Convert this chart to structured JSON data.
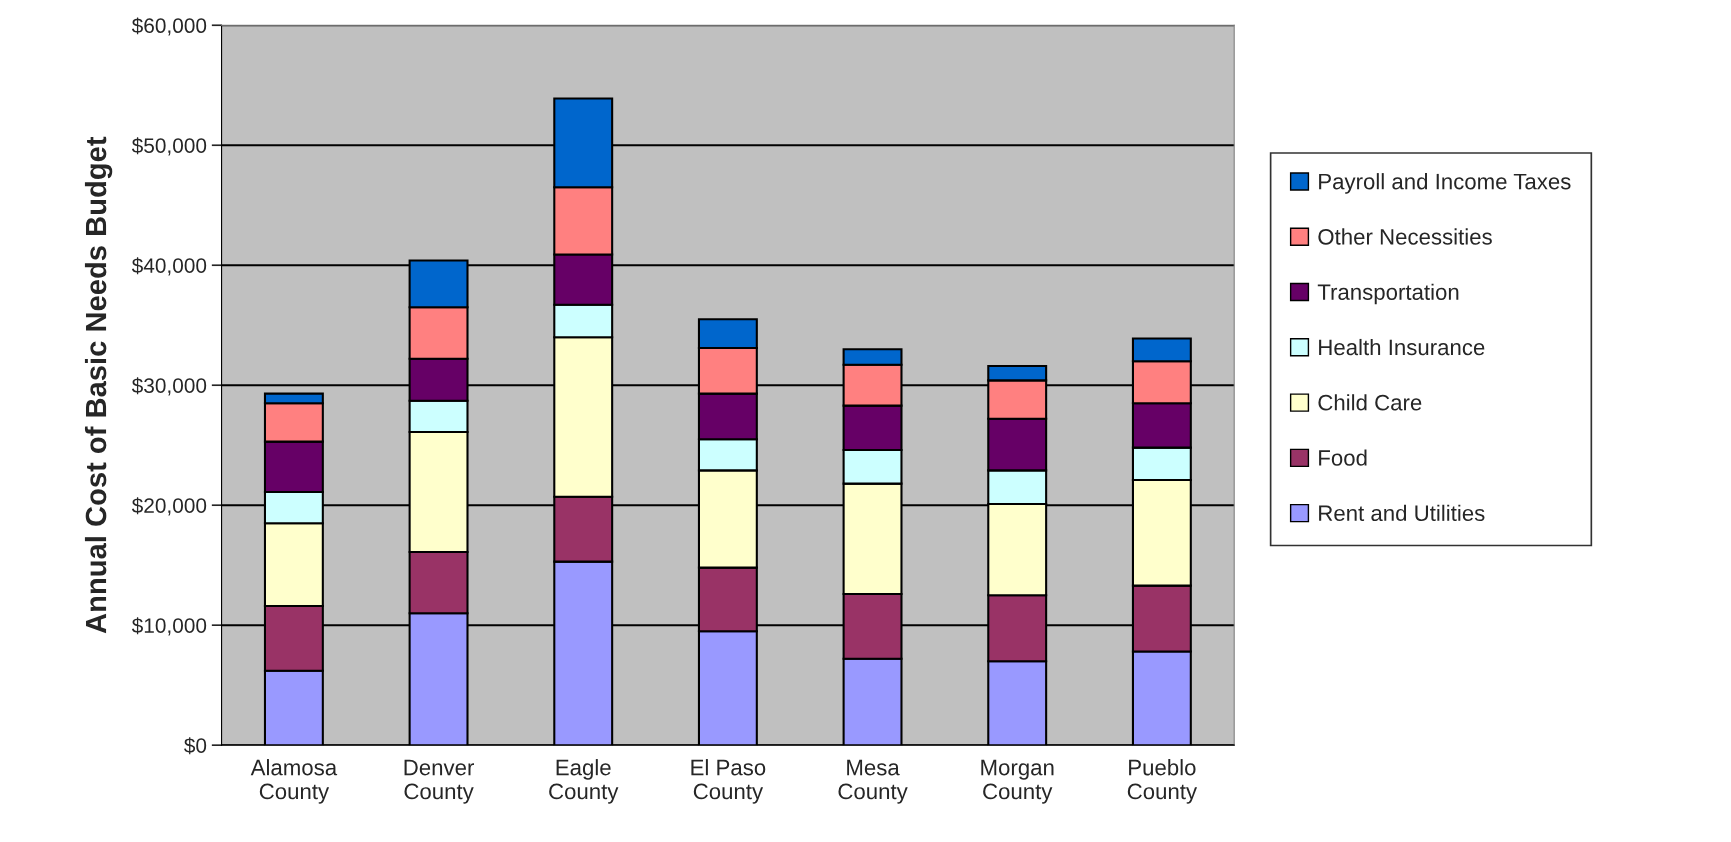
{
  "chart_data": {
    "type": "bar",
    "stacked": true,
    "ylabel": "Annual Cost of Basic Needs Budget",
    "categories": [
      "Alamosa\nCounty",
      "Denver\nCounty",
      "Eagle\nCounty",
      "El Paso\nCounty",
      "Mesa\nCounty",
      "Morgan\nCounty",
      "Pueblo\nCounty"
    ],
    "series": [
      {
        "name": "Rent and Utilities",
        "color": "#9999ff",
        "values": [
          6200,
          11000,
          15300,
          9500,
          7200,
          7000,
          7800
        ]
      },
      {
        "name": "Food",
        "color": "#993366",
        "values": [
          5400,
          5100,
          5400,
          5300,
          5400,
          5500,
          5500
        ]
      },
      {
        "name": "Child Care",
        "color": "#ffffcc",
        "values": [
          6900,
          10000,
          13300,
          8100,
          9200,
          7600,
          8800
        ]
      },
      {
        "name": "Health Insurance",
        "color": "#ccffff",
        "values": [
          2600,
          2600,
          2700,
          2600,
          2800,
          2800,
          2700
        ]
      },
      {
        "name": "Transportation",
        "color": "#660066",
        "values": [
          4200,
          3500,
          4200,
          3800,
          3700,
          4300,
          3700
        ]
      },
      {
        "name": "Other Necessities",
        "color": "#ff8080",
        "values": [
          3200,
          4300,
          5600,
          3800,
          3400,
          3200,
          3500
        ]
      },
      {
        "name": "Payroll and Income Taxes",
        "color": "#0066cc",
        "values": [
          800,
          3900,
          7400,
          2400,
          1300,
          1200,
          1900
        ]
      }
    ],
    "ylim": [
      0,
      60000
    ],
    "yticks": [
      {
        "value": 0,
        "label": "$0"
      },
      {
        "value": 10000,
        "label": "$10,000"
      },
      {
        "value": 20000,
        "label": "$20,000"
      },
      {
        "value": 30000,
        "label": "$30,000"
      },
      {
        "value": 40000,
        "label": "$40,000"
      },
      {
        "value": 50000,
        "label": "$50,000"
      },
      {
        "value": 60000,
        "label": "$60,000"
      }
    ],
    "grid": "y",
    "legend": "right"
  }
}
